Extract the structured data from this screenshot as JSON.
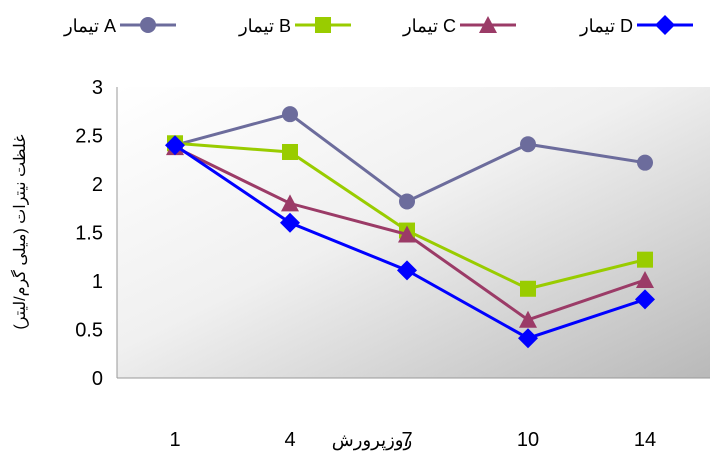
{
  "chart_data": {
    "type": "line",
    "title": "",
    "xlabel": "روزپرورش",
    "ylabel": "غلظت نیترات (میلی گرم/لیتر)",
    "categories": [
      "1",
      "4",
      "7",
      "10",
      "14"
    ],
    "ylim": [
      0,
      3
    ],
    "yticks": [
      "0",
      "0.5",
      "1",
      "1.5",
      "2",
      "2.5",
      "3"
    ],
    "grid": false,
    "legend_position": "top",
    "background": "gradient-grey",
    "series": [
      {
        "name": "تیمار A",
        "values": [
          2.4,
          2.72,
          1.82,
          2.41,
          2.22
        ],
        "color": "#6c6c9c",
        "marker": "circle"
      },
      {
        "name": "تیمار B",
        "values": [
          2.42,
          2.33,
          1.52,
          0.92,
          1.22
        ],
        "color": "#99cc00",
        "marker": "square"
      },
      {
        "name": "تیمار C",
        "values": [
          2.38,
          1.8,
          1.48,
          0.6,
          1.01
        ],
        "color": "#9b3b67",
        "marker": "triangle"
      },
      {
        "name": "تیمار D",
        "values": [
          2.4,
          1.6,
          1.11,
          0.41,
          0.81
        ],
        "color": "#0000ff",
        "marker": "diamond"
      }
    ]
  }
}
